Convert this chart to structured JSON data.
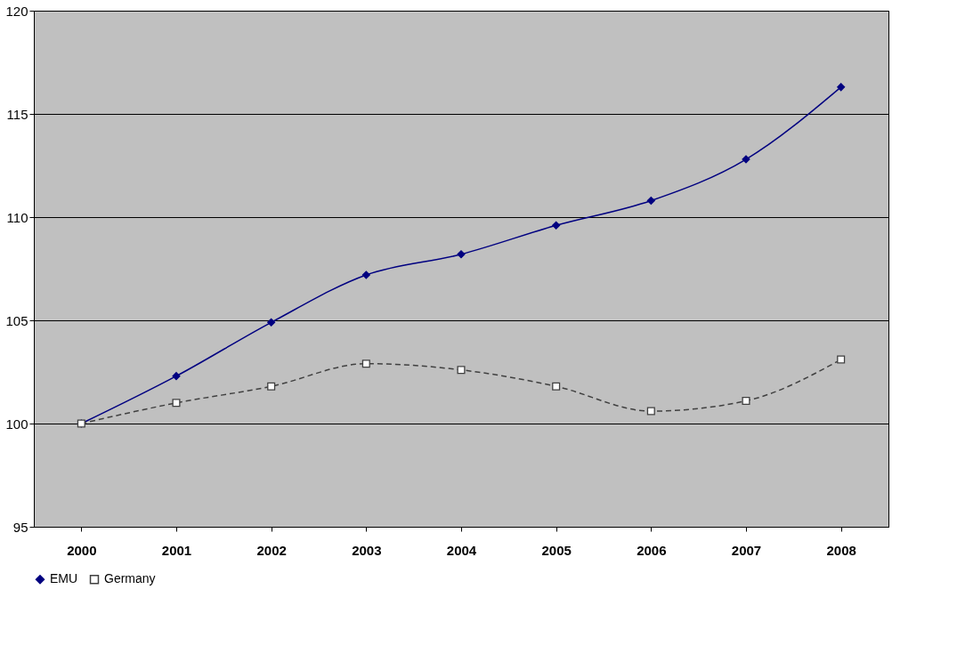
{
  "chart_data": {
    "type": "line",
    "categories": [
      "2000",
      "2001",
      "2002",
      "2003",
      "2004",
      "2005",
      "2006",
      "2007",
      "2008"
    ],
    "series": [
      {
        "name": "EMU",
        "color": "#000080",
        "marker": "diamond",
        "line_style": "solid",
        "values": [
          100,
          102.3,
          104.9,
          107.2,
          108.2,
          109.6,
          110.8,
          112.8,
          116.3
        ]
      },
      {
        "name": "Germany",
        "color": "#404040",
        "marker": "square",
        "line_style": "dashed",
        "values": [
          100,
          101.0,
          101.8,
          102.9,
          102.6,
          101.8,
          100.6,
          101.1,
          103.1
        ]
      }
    ],
    "ylim": [
      95,
      120
    ],
    "yticks": [
      95,
      100,
      105,
      110,
      115,
      120
    ],
    "grid": "y",
    "legend": "bottom"
  }
}
